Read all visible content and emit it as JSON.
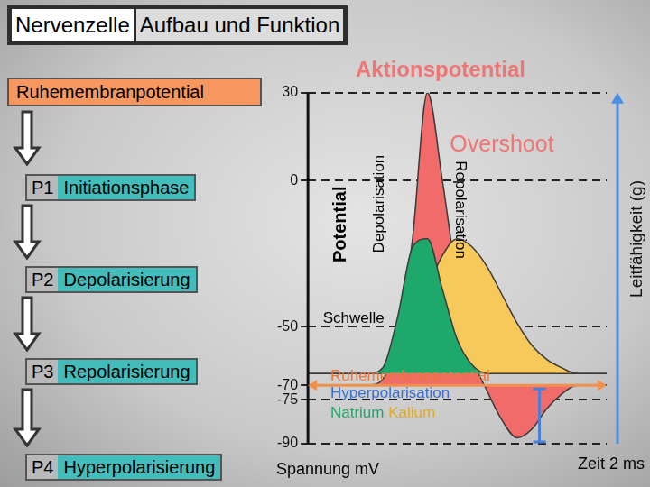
{
  "header": {
    "title": [
      "Nervenzelle",
      "Aufbau und Funktion"
    ]
  },
  "phases": [
    {
      "label": "Ruhemembranpotential"
    },
    {
      "code": "P1",
      "label": "Initiationsphase"
    },
    {
      "code": "P2",
      "label": "Depolarisierung"
    },
    {
      "code": "P3",
      "label": "Repolarisierung"
    },
    {
      "code": "P4",
      "label": "Hyperpolarisierung"
    }
  ],
  "chart_data": {
    "type": "line",
    "title": "Aktionspotential",
    "x_label": "Zeit 2 ms",
    "y_label": "Spannung mV",
    "y2_label": "Leitfähigkeit (g)",
    "x": [
      0,
      0.1,
      0.2,
      0.3,
      0.4,
      0.5,
      0.6,
      0.7,
      0.8,
      0.9,
      1.0,
      1.1,
      1.2,
      1.3,
      1.4,
      1.5,
      1.6,
      1.7,
      1.8,
      1.9,
      2.0
    ],
    "xlim": [
      0,
      2
    ],
    "ylim": [
      -90,
      30
    ],
    "yticks": [
      -90,
      -75,
      -70,
      -50,
      0,
      30
    ],
    "y2lim": [
      -0.25,
      1
    ],
    "tick_labels": "y",
    "grid": true,
    "series": [
      {
        "name": "Potential",
        "color": "#f26b6b",
        "values": [
          -70,
          -70,
          -70,
          -70,
          -70,
          -68,
          -55,
          -20,
          30,
          0,
          -35,
          -60,
          -72,
          -82,
          -88,
          -85,
          -78,
          -73,
          -70,
          -70,
          -70
        ]
      },
      {
        "name": "Kalium",
        "color": "#f7c85a",
        "axis": "y2",
        "values": [
          0,
          0,
          0,
          0,
          0,
          0,
          0.04,
          0.15,
          0.3,
          0.42,
          0.48,
          0.45,
          0.38,
          0.28,
          0.18,
          0.1,
          0.05,
          0.02,
          0,
          0,
          0
        ]
      },
      {
        "name": "Natrium",
        "color": "#1fa86b",
        "axis": "y2",
        "values": [
          0,
          0,
          0,
          0,
          0,
          0.02,
          0.2,
          0.45,
          0.48,
          0.3,
          0.12,
          0.03,
          0,
          0,
          0,
          0,
          0,
          0,
          0,
          0,
          0
        ]
      }
    ],
    "annotations": {
      "overshoot": "Overshoot",
      "threshold": "Schwelle",
      "rest": "Ruhemembranpotential",
      "hyper": "Hyperpolarisation",
      "depol": "Depolarisation",
      "repol": "Repolarisation"
    }
  }
}
